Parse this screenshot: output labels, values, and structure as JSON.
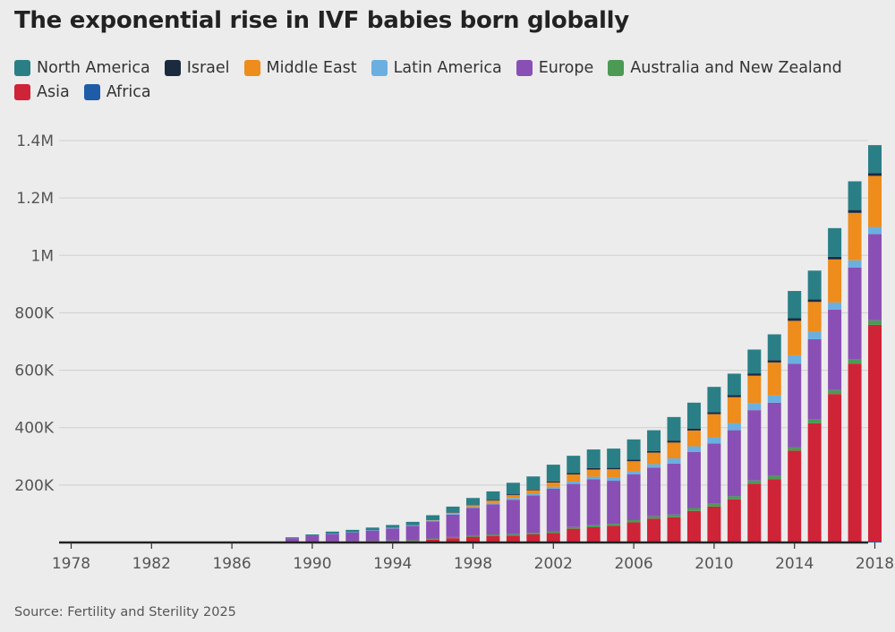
{
  "title": "The exponential rise in IVF babies born globally",
  "source": "Source: Fertility and Sterility 2025",
  "legend": [
    {
      "name": "North America",
      "color": "#2a7f86"
    },
    {
      "name": "Israel",
      "color": "#1c2a40"
    },
    {
      "name": "Middle East",
      "color": "#ee8c1c"
    },
    {
      "name": "Latin America",
      "color": "#6aafe0"
    },
    {
      "name": "Europe",
      "color": "#8a4fb5"
    },
    {
      "name": "Australia and New Zealand",
      "color": "#4c9a55"
    },
    {
      "name": "Asia",
      "color": "#cf2338"
    },
    {
      "name": "Africa",
      "color": "#1f5ca8"
    }
  ],
  "chart_data": {
    "type": "bar",
    "stacked": true,
    "title": "The exponential rise in IVF babies born globally",
    "xlabel": "",
    "ylabel": "",
    "ylim": [
      0,
      1400000
    ],
    "yticks": [
      200000,
      400000,
      600000,
      800000,
      1000000,
      1200000,
      1400000
    ],
    "ytick_labels": [
      "200K",
      "400K",
      "600K",
      "800K",
      "1M",
      "1.2M",
      "1.4M"
    ],
    "xtick_labels": [
      "1978",
      "1982",
      "1986",
      "1990",
      "1994",
      "1998",
      "2002",
      "2006",
      "2010",
      "2014",
      "2018"
    ],
    "grid": true,
    "legend_position": "top",
    "categories": [
      "1978",
      "1979",
      "1980",
      "1981",
      "1982",
      "1983",
      "1984",
      "1985",
      "1986",
      "1987",
      "1988",
      "1989",
      "1990",
      "1991",
      "1992",
      "1993",
      "1994",
      "1995",
      "1996",
      "1997",
      "1998",
      "1999",
      "2000",
      "2001",
      "2002",
      "2003",
      "2004",
      "2005",
      "2006",
      "2007",
      "2008",
      "2009",
      "2010",
      "2011",
      "2012",
      "2013",
      "2014",
      "2015",
      "2016",
      "2017",
      "2018"
    ],
    "series": [
      {
        "name": "Africa",
        "color": "#1f5ca8",
        "values": [
          0,
          0,
          0,
          0,
          0,
          0,
          0,
          0,
          0,
          0,
          0,
          0,
          0,
          0,
          0,
          0,
          0,
          0,
          0,
          0,
          0,
          0,
          0,
          0,
          0,
          0,
          0,
          0,
          0,
          0,
          0,
          0,
          0,
          0,
          0,
          0,
          0,
          0,
          2000,
          3000,
          3000
        ]
      },
      {
        "name": "Asia",
        "color": "#cf2338",
        "values": [
          0,
          0,
          0,
          0,
          0,
          0,
          0,
          0,
          0,
          0,
          0,
          1000,
          2000,
          2000,
          3000,
          3000,
          4000,
          5000,
          10000,
          15000,
          20000,
          23000,
          24000,
          28000,
          33000,
          48000,
          53000,
          58000,
          70000,
          83000,
          88000,
          110000,
          125000,
          150000,
          205000,
          220000,
          320000,
          415000,
          515000,
          620000,
          755000
        ]
      },
      {
        "name": "Australia and New Zealand",
        "color": "#4c9a55",
        "values": [
          0,
          0,
          0,
          0,
          0,
          0,
          0,
          0,
          0,
          0,
          0,
          1000,
          1000,
          2000,
          2000,
          3000,
          3000,
          3000,
          4000,
          4000,
          5000,
          5000,
          5000,
          6000,
          6000,
          6000,
          7000,
          7000,
          8000,
          8000,
          9000,
          10000,
          10000,
          11000,
          11000,
          12000,
          12000,
          13000,
          14000,
          15000,
          16000
        ]
      },
      {
        "name": "Europe",
        "color": "#8a4fb5",
        "values": [
          0,
          0,
          0,
          0,
          0,
          0,
          0,
          0,
          0,
          0,
          0,
          13000,
          20000,
          26000,
          30000,
          36000,
          42000,
          50000,
          60000,
          78000,
          95000,
          105000,
          120000,
          130000,
          148000,
          150000,
          160000,
          150000,
          160000,
          170000,
          178000,
          195000,
          210000,
          230000,
          245000,
          255000,
          290000,
          280000,
          280000,
          320000,
          300000
        ]
      },
      {
        "name": "Latin America",
        "color": "#6aafe0",
        "values": [
          0,
          0,
          0,
          0,
          0,
          0,
          0,
          0,
          0,
          0,
          0,
          0,
          0,
          1000,
          1000,
          1000,
          2000,
          2000,
          3000,
          4000,
          5000,
          5000,
          6000,
          6000,
          7000,
          8000,
          9000,
          10000,
          10000,
          12000,
          18000,
          20000,
          20000,
          25000,
          25000,
          25000,
          30000,
          25000,
          25000,
          25000,
          25000
        ]
      },
      {
        "name": "Middle East",
        "color": "#ee8c1c",
        "values": [
          0,
          0,
          0,
          0,
          0,
          0,
          0,
          0,
          0,
          0,
          0,
          0,
          0,
          0,
          0,
          0,
          0,
          0,
          2000,
          3000,
          5000,
          8000,
          10000,
          12000,
          15000,
          25000,
          25000,
          30000,
          35000,
          40000,
          55000,
          55000,
          82000,
          90000,
          95000,
          115000,
          120000,
          105000,
          150000,
          165000,
          178000
        ]
      },
      {
        "name": "Israel",
        "color": "#1c2a40",
        "values": [
          0,
          0,
          0,
          0,
          0,
          0,
          0,
          0,
          0,
          0,
          0,
          0,
          0,
          0,
          0,
          0,
          0,
          0,
          1000,
          1000,
          2000,
          2000,
          3000,
          3000,
          4000,
          5000,
          5000,
          5000,
          6000,
          6000,
          7000,
          7000,
          7000,
          7000,
          8000,
          8000,
          9000,
          9000,
          9000,
          10000,
          10000
        ]
      },
      {
        "name": "North America",
        "color": "#2a7f86",
        "values": [
          0,
          0,
          0,
          0,
          0,
          0,
          0,
          0,
          0,
          0,
          0,
          3000,
          5000,
          7000,
          8000,
          9000,
          10000,
          12000,
          15000,
          20000,
          23000,
          30000,
          40000,
          45000,
          58000,
          60000,
          65000,
          67000,
          70000,
          72000,
          82000,
          90000,
          88000,
          75000,
          83000,
          90000,
          95000,
          100000,
          100000,
          100000,
          97000
        ]
      }
    ]
  }
}
